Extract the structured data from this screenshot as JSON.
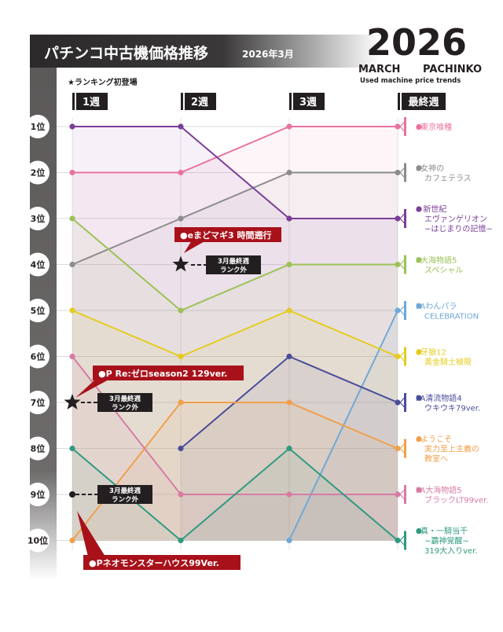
{
  "header": {
    "title": "パチンコ中古機価格推移",
    "period": "2026年3月",
    "year": "2026",
    "month_en": "MARCH",
    "category_en": "PACHINKO",
    "subtitle_en": "Used machine price trends",
    "ranking_note": "★ランキング初登場"
  },
  "columns": [
    "1週",
    "2週",
    "3週",
    "最終週"
  ],
  "rank_labels": [
    "1位",
    "2位",
    "3位",
    "4位",
    "5位",
    "6位",
    "7位",
    "8位",
    "9位",
    "10位"
  ],
  "callouts": {
    "star_a": {
      "name": "●eまどマギ3 時間遡行",
      "note1": "3月最終週",
      "note2": "ランク外"
    },
    "star_b": {
      "name": "●P Re:ゼロseason2 129ver.",
      "note1": "3月最終週",
      "note2": "ランク外"
    },
    "dot_c": {
      "name": "●Pネオモンスターハウス99Ver.",
      "note1": "3月最終週",
      "note2": "ランク外"
    }
  },
  "chart_data": {
    "type": "line",
    "title": "パチンコ中古機価格推移",
    "x": [
      "1週",
      "2週",
      "3週",
      "最終週"
    ],
    "y_axis": "rank",
    "ylim": [
      1,
      10
    ],
    "y_inverted": true,
    "series": [
      {
        "name": "e東京喰種",
        "color": "#e8739f",
        "values": [
          2,
          2,
          1,
          1
        ],
        "label_lines": [
          "e東京喰種"
        ]
      },
      {
        "name": "e女神のカフェテラス",
        "color": "#8c8c8c",
        "values": [
          4,
          3,
          2,
          2
        ],
        "label_lines": [
          "e女神の",
          "カフェテラス"
        ]
      },
      {
        "name": "e 新世紀エヴァンゲリオン ~はじまりの記憶~",
        "color": "#7b3f98",
        "values": [
          1,
          1,
          3,
          3
        ],
        "label_lines": [
          "e 新世紀",
          "エヴァンゲリオン",
          "~はじまりの記憶~"
        ]
      },
      {
        "name": "P大海物語5スペシャル",
        "color": "#9cc256",
        "values": [
          3,
          5,
          4,
          4
        ],
        "label_lines": [
          "P大海物語5",
          "スペシャル"
        ]
      },
      {
        "name": "PAわんパラCELEBRATION",
        "color": "#6fa8d6",
        "values": [
          null,
          null,
          10,
          5
        ],
        "label_lines": [
          "PAわんパラ",
          "CELEBRATION"
        ]
      },
      {
        "name": "e牙狼12 黄金騎士極限",
        "color": "#e5cc1f",
        "values": [
          5,
          6,
          5,
          6
        ],
        "label_lines": [
          "e牙狼12",
          "黄金騎士極限"
        ]
      },
      {
        "name": "PA清流物語4ウキウキ79ver.",
        "color": "#4a4d9a",
        "values": [
          null,
          8,
          6,
          7
        ],
        "label_lines": [
          "PA清流物語4",
          "ウキウキ79ver."
        ]
      },
      {
        "name": "eようこそ実力至上主義の教室へ",
        "color": "#f0a04b",
        "values": [
          10,
          7,
          7,
          8
        ],
        "label_lines": [
          "eようこそ",
          "実力至上主義の",
          "教室へ"
        ]
      },
      {
        "name": "PA大海物語5ブラックLT99ver.",
        "color": "#d77ba5",
        "values": [
          6,
          9,
          9,
          9
        ],
        "label_lines": [
          "PA大海物語5",
          "ブラックLT99ver."
        ]
      },
      {
        "name": "e真・一騎当千~覇神覚醒~319大入りver.",
        "color": "#2f9a80",
        "values": [
          8,
          10,
          8,
          10
        ],
        "label_lines": [
          "e真・一騎当千",
          "~覇神覚醒~",
          "319大入りver."
        ]
      }
    ],
    "dropouts": [
      {
        "name": "eまどマギ3 時間遡行",
        "week": "2週",
        "rank": 4,
        "marker": "star",
        "note": "3月最終週ランク外"
      },
      {
        "name": "P Re:ゼロseason2 129ver.",
        "week": "1週",
        "rank": 7,
        "marker": "star",
        "note": "3月最終週ランク外"
      },
      {
        "name": "Pネオモンスターハウス99Ver.",
        "week": "1週",
        "rank": 9,
        "marker": "dot",
        "note": "3月最終週ランク外"
      }
    ]
  }
}
